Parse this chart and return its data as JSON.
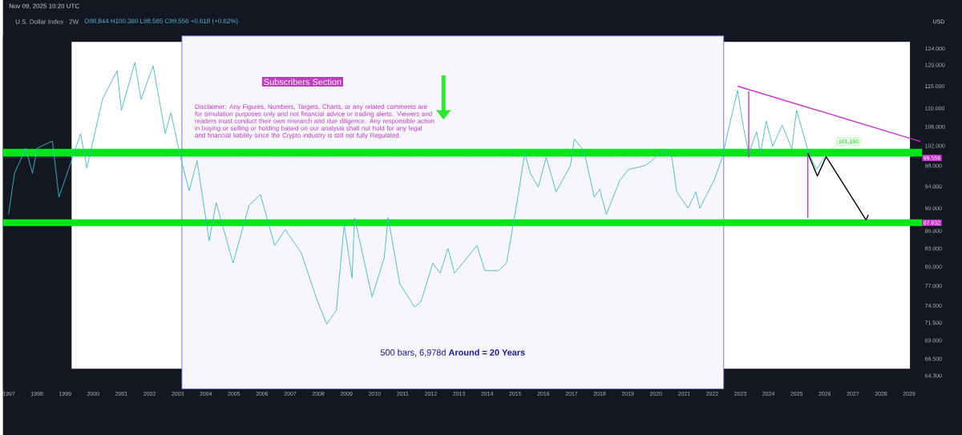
{
  "chart_data": {
    "type": "line",
    "title": "U.S. Dollar Index · 2W",
    "subtitle": "O98.844 H100.360 L98.565 C99.556 +0.618 (+0.62%)",
    "ylabel": "USD",
    "log": "y",
    "xlim": [
      1996.79,
      2029.46
    ],
    "ylim": [
      62.6,
      127.2
    ],
    "xticks": [
      1997,
      1998,
      1999,
      2000,
      2001,
      2002,
      2003,
      2004,
      2005,
      2006,
      2007,
      2008,
      2009,
      2010,
      2011,
      2012,
      2013,
      2014,
      2015,
      2016,
      2017,
      2018,
      2019,
      2020,
      2021,
      2022,
      2023,
      2024,
      2025,
      2026,
      2027,
      2028,
      2029
    ],
    "yticks": [
      {
        "value": 64.3,
        "label": "64.300"
      },
      {
        "value": 66.5,
        "label": "66.500"
      },
      {
        "value": 69,
        "label": "69.000"
      },
      {
        "value": 71.5,
        "label": "71.500"
      },
      {
        "value": 74,
        "label": "74.000"
      },
      {
        "value": 77,
        "label": "77.000"
      },
      {
        "value": 80,
        "label": "80.000"
      },
      {
        "value": 83,
        "label": "83.000"
      },
      {
        "value": 86,
        "label": "86.000"
      },
      {
        "value": 90,
        "label": "90.000"
      },
      {
        "value": 94,
        "label": "94.000"
      },
      {
        "value": 98,
        "label": "98.000"
      },
      {
        "value": 102,
        "label": "102.000"
      },
      {
        "value": 106,
        "label": "106.000"
      },
      {
        "value": 110,
        "label": "110.000"
      },
      {
        "value": 115,
        "label": "115.000"
      },
      {
        "value": 120,
        "label": "120.000"
      },
      {
        "value": 124,
        "label": "124.000"
      }
    ],
    "series": [
      {
        "color": "#3fb8c4",
        "x": [
          1996.99,
          1997.2,
          1997.6,
          1997.84,
          1998.0,
          1998.55,
          1998.78,
          1999.12,
          1999.55,
          1999.77,
          2000.34,
          2000.85,
          2001.0,
          2001.48,
          2001.7,
          2002.13,
          2002.56,
          2002.76,
          2003.13,
          2003.41,
          2003.69,
          2004.12,
          2004.37,
          2004.97,
          2005.54,
          2005.94,
          2006.45,
          2006.82,
          2007.39,
          2007.95,
          2008.3,
          2008.64,
          2008.92,
          2009.2,
          2009.29,
          2009.91,
          2010.34,
          2010.48,
          2010.9,
          2011.42,
          2011.65,
          2012.07,
          2012.33,
          2012.61,
          2012.84,
          2013.64,
          2013.92,
          2014.4,
          2014.69,
          2015.06,
          2015.34,
          2015.54,
          2015.82,
          2016.1,
          2016.45,
          2016.96,
          2017.1,
          2017.44,
          2017.81,
          2018.0,
          2018.24,
          2018.72,
          2019.03,
          2019.6,
          2019.86,
          2020.2,
          2020.57,
          2020.74,
          2021.14,
          2021.42,
          2021.56,
          2022.07,
          2022.36,
          2022.56,
          2022.9,
          2023.12,
          2023.3,
          2023.58,
          2023.72,
          2023.92,
          2024.15,
          2024.49,
          2024.83,
          2025.0,
          2025.43,
          2025.71,
          2025.97
        ],
        "values": [
          88.9,
          96.5,
          101.5,
          96.5,
          101.5,
          103,
          92,
          97.3,
          104.5,
          97.6,
          112.2,
          118.6,
          109.5,
          120.6,
          112,
          119.8,
          104.5,
          109,
          99,
          93.2,
          99,
          84.3,
          91,
          80.6,
          90.5,
          92.5,
          83.5,
          86.2,
          82.3,
          74.9,
          71.3,
          73.3,
          87.1,
          78.2,
          88.3,
          75.3,
          81.4,
          88.3,
          77.3,
          73.8,
          74.6,
          80.6,
          79,
          83,
          79,
          83.5,
          79.4,
          79.4,
          80.6,
          91,
          100.5,
          96.5,
          93.9,
          99.7,
          93,
          98,
          103.4,
          101,
          92,
          93.5,
          88.9,
          95.2,
          97.3,
          98,
          99,
          101,
          99.7,
          93,
          90,
          93,
          90,
          95.2,
          99.7,
          104.9,
          114,
          105.6,
          100.5,
          104.9,
          100.5,
          107.2,
          101.9,
          106.3,
          101.4,
          109.6,
          100.5,
          97.3,
          99.6
        ]
      },
      {
        "color": "#cc33cc",
        "x": [
          2022.9,
          2029.4
        ],
        "values": [
          115.0,
          102.9
        ]
      },
      {
        "color": "#cc33cc",
        "x": [
          2023.3,
          2023.3
        ],
        "values": [
          113.8,
          99.6
        ]
      },
      {
        "color": "#cc33cc",
        "x": [
          2025.4,
          2025.4
        ],
        "values": [
          100.3,
          88.3
        ]
      },
      {
        "color": "#000000",
        "x": [
          2025.4,
          2025.74,
          2026.05,
          2027.47,
          2027.55
        ],
        "values": [
          100.5,
          96.0,
          99.8,
          87.9,
          88.8
        ]
      }
    ],
    "bands": [
      {
        "axis": "x",
        "from": 2003.15,
        "to": 2022.41,
        "label": "500 bars, 6,978d **Around = 20 Years**",
        "color": "#5b5bd6"
      },
      {
        "axis": "y",
        "from": 99.8,
        "to": 101.4,
        "color": "#00e61a"
      },
      {
        "axis": "y",
        "from": 86.8,
        "to": 88.0,
        "label": "87.632",
        "color": "#00e61a"
      }
    ],
    "ref_lines": [
      {
        "axis": "y",
        "value": 99.556,
        "label": "99.556",
        "color": "#9598a1",
        "line_style": "dotted"
      }
    ],
    "annotations": [
      "Nov 09, 2025 10:20 UTC",
      "Subscribers Section",
      "Disclaimer: Any Figures, Numbers, Targets, Charts, or any related comments are for simulation purposes only and not financial advice or trading alerts. Viewers and readers must conduct their own research and due diligence. Any responsible action in buying or selling or holding based on our analysis shall not hold for any legal and financial liability since the Crypto industry is still not fully Regulated.",
      {
        "text": "101.150",
        "x": 2026.2,
        "y": 101.15
      }
    ]
  }
}
